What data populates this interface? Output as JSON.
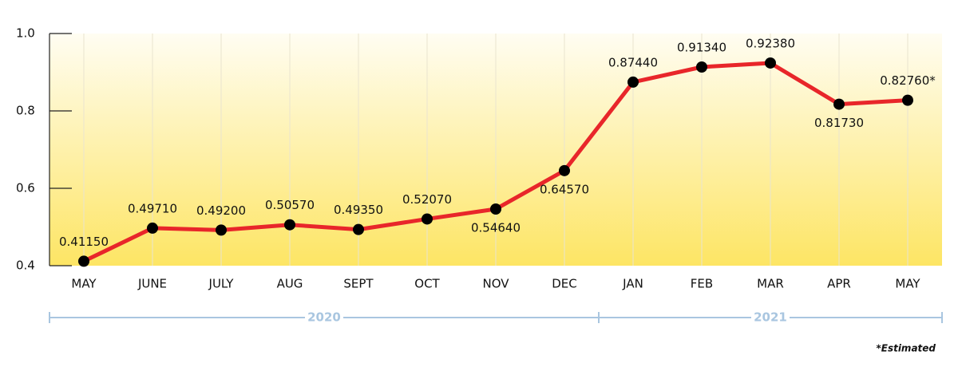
{
  "chart_data": {
    "type": "line",
    "categories": [
      "MAY",
      "JUNE",
      "JULY",
      "AUG",
      "SEPT",
      "OCT",
      "NOV",
      "DEC",
      "JAN",
      "FEB",
      "MAR",
      "APR",
      "MAY"
    ],
    "values": [
      0.4115,
      0.4971,
      0.492,
      0.5057,
      0.4935,
      0.5207,
      0.5464,
      0.6457,
      0.8744,
      0.9134,
      0.9238,
      0.8173,
      0.8276
    ],
    "value_labels": [
      "0.41150",
      "0.49710",
      "0.49200",
      "0.50570",
      "0.49350",
      "0.52070",
      "0.54640",
      "0.64570",
      "0.87440",
      "0.91340",
      "0.92380",
      "0.81730",
      "0.82760*"
    ],
    "color": "#e8262a",
    "marker_color": "#000000",
    "ylim": [
      0.4,
      1.0
    ],
    "yticks": [
      0.4,
      0.6,
      0.8,
      {
        "value": 1,
        "label": "1.0"
      }
    ],
    "grid": true,
    "years": [
      "2020",
      "2021"
    ],
    "note": "*Estimated"
  }
}
